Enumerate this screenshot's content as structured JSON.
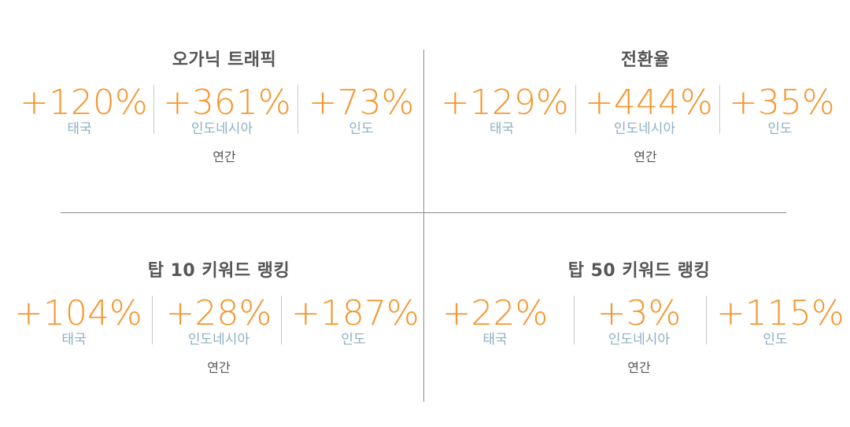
{
  "quadrants": [
    {
      "title": "오가닉 트래픽",
      "period": "연간",
      "stats": [
        {
          "value": "+120%",
          "label": "태국"
        },
        {
          "value": "+361%",
          "label": "인도네시아"
        },
        {
          "value": "+73%",
          "label": "인도"
        }
      ]
    },
    {
      "title": "전환율",
      "period": "연간",
      "stats": [
        {
          "value": "+129%",
          "label": "태국"
        },
        {
          "value": "+444%",
          "label": "인도네시아"
        },
        {
          "value": "+35%",
          "label": "인도"
        }
      ]
    },
    {
      "title": "탑 10 키워드 랭킹",
      "period": "연간",
      "stats": [
        {
          "value": "+104%",
          "label": "태국"
        },
        {
          "value": "+28%",
          "label": "인도네시아"
        },
        {
          "value": "+187%",
          "label": "인도"
        }
      ]
    },
    {
      "title": "탑 50 키워드 랭킹",
      "period": "연간",
      "stats": [
        {
          "value": "+22%",
          "label": "태국"
        },
        {
          "value": "+3%",
          "label": "인도네시아"
        },
        {
          "value": "+115%",
          "label": "인도"
        }
      ]
    }
  ],
  "colors": {
    "value": "#f5962e",
    "label": "#8eb0c3",
    "title": "#555555",
    "divider": "#8a8a8a"
  }
}
